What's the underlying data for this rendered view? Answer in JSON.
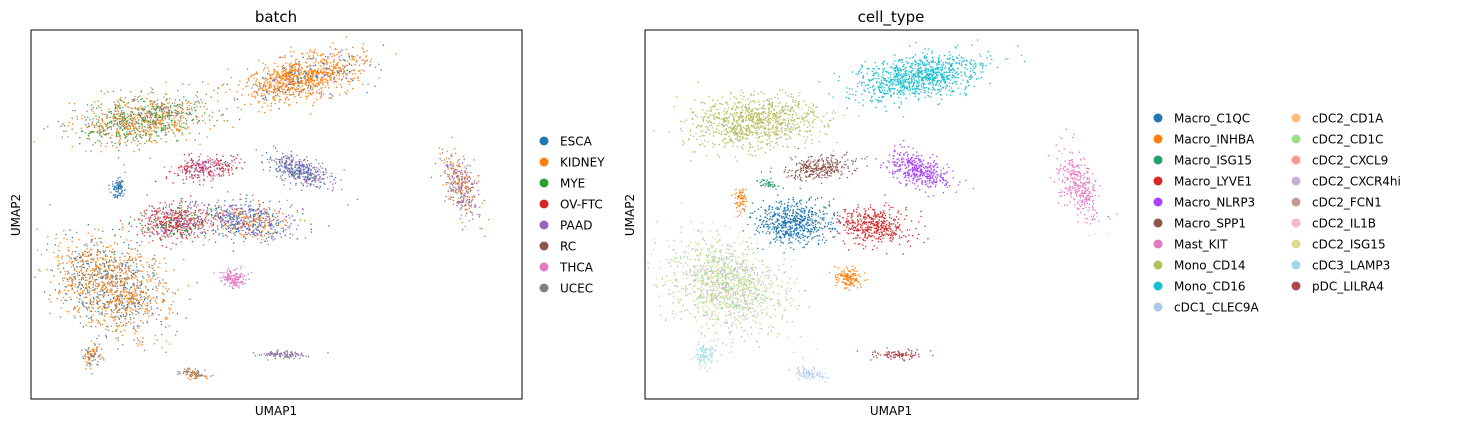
{
  "chart_data": [
    {
      "type": "scatter",
      "title": "batch",
      "xlabel": "UMAP1",
      "ylabel": "UMAP2",
      "grid": false,
      "xticks": false,
      "yticks": false,
      "legend": "right",
      "series": [
        {
          "name": "ESCA",
          "color": "#1f77b4"
        },
        {
          "name": "KIDNEY",
          "color": "#ff7f0e"
        },
        {
          "name": "MYE",
          "color": "#2ca02c"
        },
        {
          "name": "OV-FTC",
          "color": "#d62728"
        },
        {
          "name": "PAAD",
          "color": "#9467bd"
        },
        {
          "name": "RC",
          "color": "#8c564b"
        },
        {
          "name": "THCA",
          "color": "#e377c2"
        },
        {
          "name": "UCEC",
          "color": "#7f7f7f"
        }
      ]
    },
    {
      "type": "scatter",
      "title": "cell_type",
      "xlabel": "UMAP1",
      "ylabel": "UMAP2",
      "grid": false,
      "xticks": false,
      "yticks": false,
      "legend": "right",
      "series": [
        {
          "name": "Macro_C1QC",
          "color": "#1f77b4"
        },
        {
          "name": "Macro_INHBA",
          "color": "#ff7f0e"
        },
        {
          "name": "Macro_ISG15",
          "color": "#279e68"
        },
        {
          "name": "Macro_LYVE1",
          "color": "#d62728"
        },
        {
          "name": "Macro_NLRP3",
          "color": "#aa40fc"
        },
        {
          "name": "Macro_SPP1",
          "color": "#8c564b"
        },
        {
          "name": "Mast_KIT",
          "color": "#e377c2"
        },
        {
          "name": "Mono_CD14",
          "color": "#b5bd61"
        },
        {
          "name": "Mono_CD16",
          "color": "#17becf"
        },
        {
          "name": "cDC1_CLEC9A",
          "color": "#aec7e8"
        },
        {
          "name": "cDC2_CD1A",
          "color": "#ffbb78"
        },
        {
          "name": "cDC2_CD1C",
          "color": "#98df8a"
        },
        {
          "name": "cDC2_CXCL9",
          "color": "#ff9896"
        },
        {
          "name": "cDC2_CXCR4hi",
          "color": "#c5b0d5"
        },
        {
          "name": "cDC2_FCN1",
          "color": "#c49c94"
        },
        {
          "name": "cDC2_IL1B",
          "color": "#f7b6d2"
        },
        {
          "name": "cDC2_ISG15",
          "color": "#dbdb8d"
        },
        {
          "name": "cDC3_LAMP3",
          "color": "#9edae5"
        },
        {
          "name": "pDC_LILRA4",
          "color": "#ad494a"
        }
      ]
    }
  ]
}
